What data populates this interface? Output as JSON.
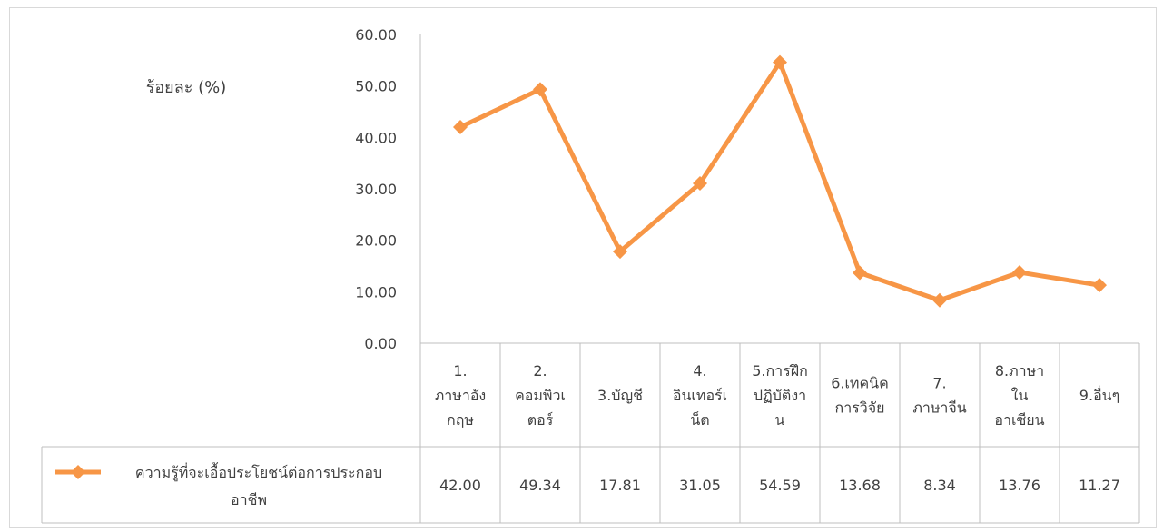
{
  "chart_data": {
    "type": "line",
    "ylabel": "ร้อยละ (%)",
    "ylim": [
      0,
      60
    ],
    "yticks": [
      "0.00",
      "10.00",
      "20.00",
      "30.00",
      "40.00",
      "50.00",
      "60.00"
    ],
    "categories": [
      [
        "1.",
        "ภาษาอัง",
        "กฤษ"
      ],
      [
        "2.",
        "คอมพิวเ",
        "ตอร์"
      ],
      [
        "3.บัญชี"
      ],
      [
        "4.",
        "อินเทอร์เ",
        "น็ต"
      ],
      [
        "5.การฝึก",
        "ปฏิบัติงา",
        "น"
      ],
      [
        "6.เทคนิค",
        "การวิจัย"
      ],
      [
        "7.",
        "ภาษาจีน"
      ],
      [
        "8.ภาษา",
        "ใน",
        "อาเซียน"
      ],
      [
        "9.อื่นๆ"
      ]
    ],
    "series": [
      {
        "name": [
          "ความรู้ที่จะเอื้อประโยชน์ต่อการประกอบ",
          "อาชีพ"
        ],
        "values": [
          42.0,
          49.34,
          17.81,
          31.05,
          54.59,
          13.68,
          8.34,
          13.76,
          11.27
        ],
        "value_labels": [
          "42.00",
          "49.34",
          "17.81",
          "31.05",
          "54.59",
          "13.68",
          "8.34",
          "13.76",
          "11.27"
        ],
        "color": "#f79646",
        "marker": "diamond"
      }
    ],
    "grid": false,
    "legend": "data-table"
  }
}
